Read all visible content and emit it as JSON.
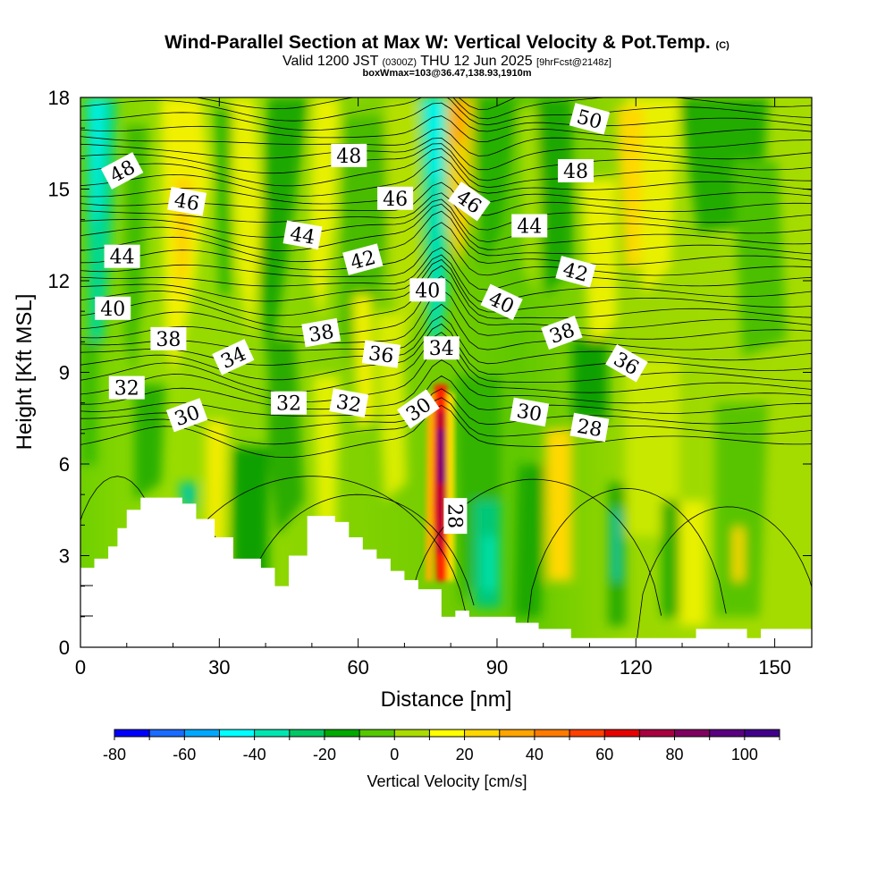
{
  "titles": {
    "main": "Wind-Parallel Section at Max W: Vertical Velocity & Pot.Temp.",
    "copyright": "(C)",
    "valid_a": "Valid 1200 JST",
    "valid_b": "(0300Z)",
    "valid_c": "THU 12 Jun 2025",
    "valid_d": "[9hrFcst@2148z]",
    "box": "boxWmax=103@36.47,138.93,1910m"
  },
  "chart_data": {
    "type": "heatmap",
    "xlabel": "Distance [nm]",
    "ylabel": "Height [Kft MSL]",
    "xlim": [
      0,
      158
    ],
    "ylim": [
      0,
      18
    ],
    "xticks": [
      0,
      30,
      60,
      90,
      120,
      150
    ],
    "yticks": [
      0,
      3,
      6,
      9,
      12,
      15,
      18
    ],
    "colorbar": {
      "label": "Vertical Velocity [cm/s]",
      "min": -80,
      "max": 110,
      "step": 10,
      "ticks": [
        -80,
        -60,
        -40,
        -20,
        0,
        20,
        40,
        60,
        80,
        100
      ],
      "colors": [
        "#0000ff",
        "#1a6bff",
        "#00a8ff",
        "#00ffff",
        "#00e6b0",
        "#00c864",
        "#00aa00",
        "#55c800",
        "#aadc00",
        "#ffff00",
        "#ffd700",
        "#ffa500",
        "#ff7b00",
        "#ff4000",
        "#e60000",
        "#a80040",
        "#800060",
        "#5a0080",
        "#40008c"
      ]
    },
    "theta_contour_labels": [
      {
        "text": "48",
        "x": 9,
        "y": 15.6,
        "angle": 28
      },
      {
        "text": "46",
        "x": 23,
        "y": 14.6,
        "angle": -10
      },
      {
        "text": "44",
        "x": 9,
        "y": 12.8,
        "angle": 0
      },
      {
        "text": "40",
        "x": 7,
        "y": 11.1,
        "angle": 0
      },
      {
        "text": "38",
        "x": 19,
        "y": 10.1,
        "angle": 0
      },
      {
        "text": "34",
        "x": 33,
        "y": 9.5,
        "angle": 25
      },
      {
        "text": "32",
        "x": 10,
        "y": 8.5,
        "angle": 0
      },
      {
        "text": "30",
        "x": 23,
        "y": 7.6,
        "angle": 20
      },
      {
        "text": "48",
        "x": 58,
        "y": 16.1,
        "angle": 0
      },
      {
        "text": "46",
        "x": 68,
        "y": 14.7,
        "angle": 0
      },
      {
        "text": "44",
        "x": 48,
        "y": 13.5,
        "angle": -10
      },
      {
        "text": "42",
        "x": 61,
        "y": 12.7,
        "angle": 15
      },
      {
        "text": "40",
        "x": 75,
        "y": 11.7,
        "angle": 0
      },
      {
        "text": "38",
        "x": 52,
        "y": 10.3,
        "angle": 10
      },
      {
        "text": "36",
        "x": 65,
        "y": 9.6,
        "angle": -8
      },
      {
        "text": "34",
        "x": 78,
        "y": 9.8,
        "angle": 0
      },
      {
        "text": "32",
        "x": 45,
        "y": 8.0,
        "angle": 0
      },
      {
        "text": "32",
        "x": 58,
        "y": 8.0,
        "angle": -10
      },
      {
        "text": "30",
        "x": 73,
        "y": 7.8,
        "angle": 35
      },
      {
        "text": "28",
        "x": 81,
        "y": 4.3,
        "angle": -90
      },
      {
        "text": "50",
        "x": 110,
        "y": 17.3,
        "angle": -15
      },
      {
        "text": "48",
        "x": 107,
        "y": 15.6,
        "angle": 0
      },
      {
        "text": "46",
        "x": 84,
        "y": 14.6,
        "angle": -35
      },
      {
        "text": "44",
        "x": 97,
        "y": 13.8,
        "angle": 0
      },
      {
        "text": "42",
        "x": 107,
        "y": 12.3,
        "angle": -15
      },
      {
        "text": "40",
        "x": 91,
        "y": 11.3,
        "angle": -25
      },
      {
        "text": "38",
        "x": 104,
        "y": 10.3,
        "angle": 20
      },
      {
        "text": "36",
        "x": 118,
        "y": 9.3,
        "angle": -30
      },
      {
        "text": "30",
        "x": 97,
        "y": 7.7,
        "angle": -10
      },
      {
        "text": "28",
        "x": 110,
        "y": 7.2,
        "angle": -10
      }
    ],
    "terrain": {
      "x": [
        0,
        3,
        3,
        6,
        6,
        8,
        8,
        10,
        10,
        13,
        13,
        22,
        22,
        25,
        25,
        29,
        29,
        33,
        33,
        39,
        39,
        42,
        42,
        45,
        45,
        49,
        49,
        55,
        55,
        58,
        58,
        61,
        61,
        64,
        64,
        67,
        67,
        70,
        70,
        73,
        73,
        78,
        78,
        81,
        81,
        84,
        84,
        94,
        94,
        99,
        99,
        106,
        106,
        116,
        116,
        133,
        133,
        144,
        144,
        147,
        147,
        158
      ],
      "y": [
        2.6,
        2.6,
        2.9,
        2.9,
        3.3,
        3.3,
        3.9,
        3.9,
        4.5,
        4.5,
        4.9,
        4.9,
        4.7,
        4.7,
        4.2,
        4.2,
        3.6,
        3.6,
        2.9,
        2.9,
        2.6,
        2.6,
        2.0,
        2.0,
        3.0,
        3.0,
        4.3,
        4.3,
        4.1,
        4.1,
        3.6,
        3.6,
        3.2,
        3.2,
        2.9,
        2.9,
        2.5,
        2.5,
        2.2,
        2.2,
        1.9,
        1.9,
        1.0,
        1.0,
        1.2,
        1.2,
        1.0,
        1.0,
        0.8,
        0.8,
        0.6,
        0.6,
        0.3,
        0.3,
        0.3,
        0.3,
        0.6,
        0.6,
        0.3,
        0.3,
        0.6,
        0.6
      ]
    }
  }
}
